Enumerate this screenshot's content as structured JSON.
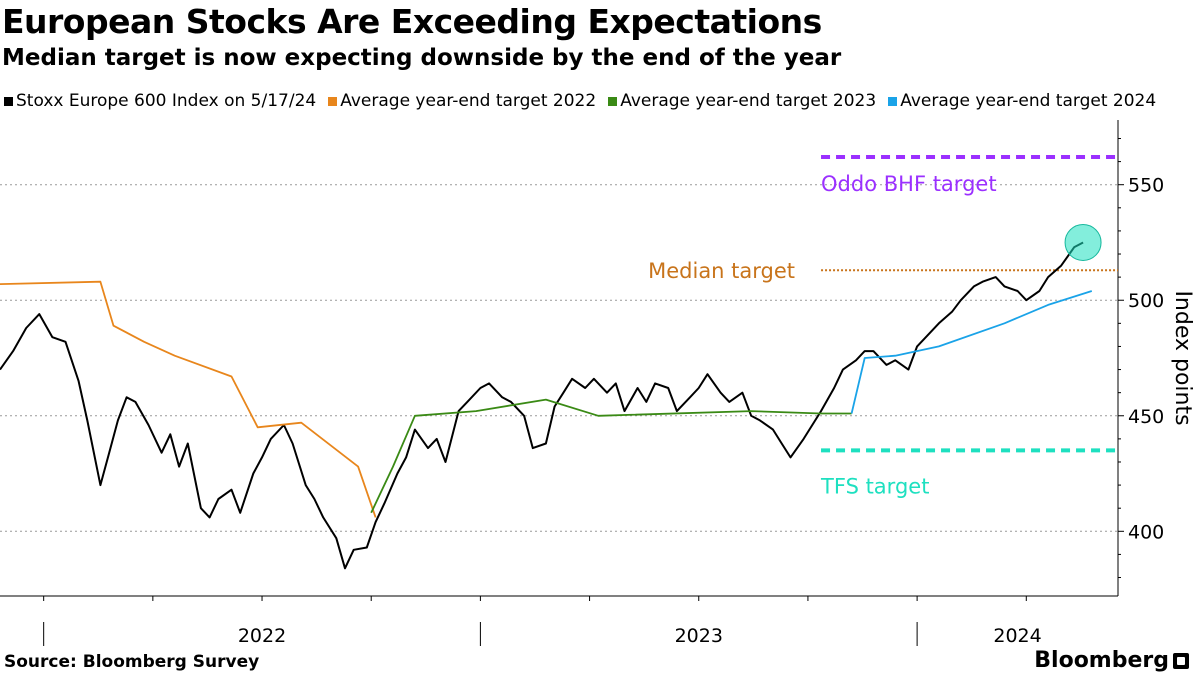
{
  "title": "European Stocks Are Exceeding Expectations",
  "subtitle": "Median target is now expecting downside by the end of the year",
  "legend": [
    {
      "label": "Stoxx Europe 600 Index on 5/17/24",
      "color": "#000000"
    },
    {
      "label": "Average year-end target 2022",
      "color": "#e8861c"
    },
    {
      "label": "Average year-end target 2023",
      "color": "#3a8a15"
    },
    {
      "label": "Average year-end target 2024",
      "color": "#1aa3e8"
    }
  ],
  "source": "Source: Bloomberg Survey",
  "brand": "Bloomberg",
  "chart_data": {
    "type": "line",
    "xlabel": "",
    "ylabel": "Index points",
    "ylim": [
      372,
      578
    ],
    "xlim": [
      2021.9,
      2024.46
    ],
    "yticks": [
      400,
      450,
      500,
      550
    ],
    "xtick_labels": [
      "2022",
      "2023",
      "2024"
    ],
    "grid": true,
    "series": [
      {
        "name": "Stoxx Europe 600 Index on 5/17/24",
        "color": "#000000",
        "x": [
          2021.9,
          2021.93,
          2021.96,
          2021.99,
          2022.02,
          2022.05,
          2022.08,
          2022.1,
          2022.13,
          2022.15,
          2022.17,
          2022.19,
          2022.21,
          2022.24,
          2022.27,
          2022.29,
          2022.31,
          2022.33,
          2022.36,
          2022.38,
          2022.4,
          2022.43,
          2022.45,
          2022.48,
          2022.5,
          2022.52,
          2022.55,
          2022.57,
          2022.6,
          2022.62,
          2022.64,
          2022.67,
          2022.69,
          2022.71,
          2022.74,
          2022.76,
          2022.78,
          2022.81,
          2022.83,
          2022.85,
          2022.88,
          2022.9,
          2022.92,
          2022.95,
          2022.97,
          2023.0,
          2023.02,
          2023.05,
          2023.07,
          2023.1,
          2023.12,
          2023.15,
          2023.17,
          2023.19,
          2023.21,
          2023.24,
          2023.26,
          2023.29,
          2023.31,
          2023.33,
          2023.36,
          2023.38,
          2023.4,
          2023.43,
          2023.45,
          2023.48,
          2023.5,
          2023.52,
          2023.55,
          2023.57,
          2023.6,
          2023.62,
          2023.64,
          2023.67,
          2023.69,
          2023.71,
          2023.74,
          2023.76,
          2023.78,
          2023.81,
          2023.83,
          2023.86,
          2023.88,
          2023.9,
          2023.93,
          2023.95,
          2023.98,
          2024.0,
          2024.03,
          2024.05,
          2024.08,
          2024.1,
          2024.13,
          2024.15,
          2024.18,
          2024.2,
          2024.23,
          2024.25,
          2024.28,
          2024.3,
          2024.33,
          2024.36,
          2024.38
        ],
        "y": [
          470,
          478,
          488,
          494,
          484,
          482,
          465,
          448,
          420,
          434,
          448,
          458,
          456,
          446,
          434,
          442,
          428,
          438,
          410,
          406,
          414,
          418,
          408,
          425,
          432,
          440,
          446,
          438,
          420,
          414,
          406,
          397,
          384,
          392,
          393,
          404,
          412,
          425,
          432,
          444,
          436,
          440,
          430,
          452,
          456,
          462,
          464,
          458,
          456,
          450,
          436,
          438,
          454,
          460,
          466,
          462,
          466,
          460,
          464,
          452,
          462,
          456,
          464,
          462,
          452,
          458,
          462,
          468,
          460,
          456,
          460,
          450,
          448,
          444,
          438,
          432,
          440,
          446,
          452,
          462,
          470,
          474,
          478,
          478,
          472,
          474,
          470,
          480,
          486,
          490,
          495,
          500,
          506,
          508,
          510,
          506,
          504,
          500,
          504,
          510,
          515,
          523,
          525
        ]
      },
      {
        "name": "Average year-end target 2022",
        "color": "#e8861c",
        "x": [
          2021.9,
          2022.13,
          2022.16,
          2022.23,
          2022.3,
          2022.43,
          2022.49,
          2022.59,
          2022.72,
          2022.76
        ],
        "y": [
          507,
          508,
          489,
          482,
          476,
          467,
          445,
          447,
          428,
          406
        ]
      },
      {
        "name": "Average year-end target 2023",
        "color": "#3a8a15",
        "x": [
          2022.75,
          2022.8,
          2022.85,
          2022.99,
          2023.15,
          2023.27,
          2023.62,
          2023.78,
          2023.85
        ],
        "y": [
          408,
          428,
          450,
          452,
          457,
          450,
          452,
          451,
          451
        ]
      },
      {
        "name": "Average year-end target 2024",
        "color": "#1aa3e8",
        "x": [
          2023.85,
          2023.88,
          2023.95,
          2024.05,
          2024.2,
          2024.3,
          2024.4
        ],
        "y": [
          451,
          475,
          476,
          480,
          490,
          498,
          504
        ]
      }
    ],
    "reference_lines": [
      {
        "label": "Oddo BHF target",
        "y": 562,
        "color": "#9b30ff",
        "style": "dashed"
      },
      {
        "label": "Median target",
        "y": 513,
        "color": "#c8741b",
        "style": "dotted"
      },
      {
        "label": "TFS target",
        "y": 435,
        "color": "#1ee0c0",
        "style": "dashed"
      }
    ],
    "highlight": {
      "x": 2024.38,
      "y": 525,
      "color": "#1ee0c0"
    }
  }
}
